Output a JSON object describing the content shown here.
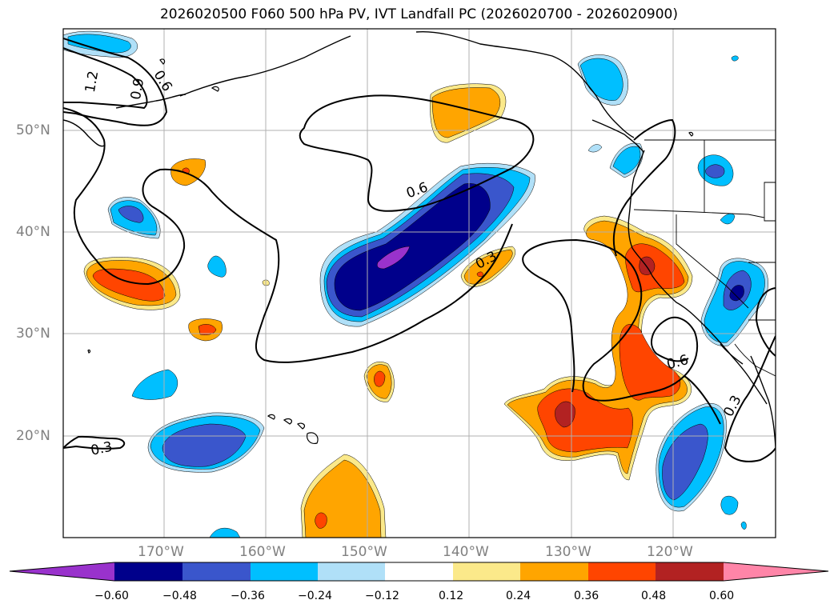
{
  "title": "2026020500 F060 500 hPa PV, IVT Landfall PC (2026020700 - 2026020900)",
  "lat_labels": [
    "50°N",
    "40°N",
    "30°N",
    "20°N"
  ],
  "lon_labels": [
    "170°W",
    "160°W",
    "150°W",
    "140°W",
    "130°W",
    "120°W"
  ],
  "contour_labels": [
    "1.2",
    "0.9",
    "0.6",
    "0.6",
    "0.3",
    "0.6",
    "0.3",
    "0.3"
  ],
  "colorbar": {
    "ticks": [
      "−0.60",
      "−0.48",
      "−0.36",
      "−0.24",
      "−0.12",
      "0.12",
      "0.24",
      "0.36",
      "0.48",
      "0.60"
    ],
    "colors": [
      "#9932cc",
      "#00008b",
      "#3a56cc",
      "#00bfff",
      "#b0e0f8",
      "#ffffff",
      "#fbe98a",
      "#ffa500",
      "#ff4500",
      "#b22222",
      "#ff85a8"
    ]
  },
  "fill_colors": {
    "neg_light": "#b0e0f8",
    "neg_med": "#00bfff",
    "neg_strong": "#3a56cc",
    "neg_vstrong": "#00008b",
    "neg_ext": "#9932cc",
    "pos_light": "#fbe98a",
    "pos_med": "#ffa500",
    "pos_strong": "#ff4500",
    "pos_vstrong": "#b22222"
  }
}
